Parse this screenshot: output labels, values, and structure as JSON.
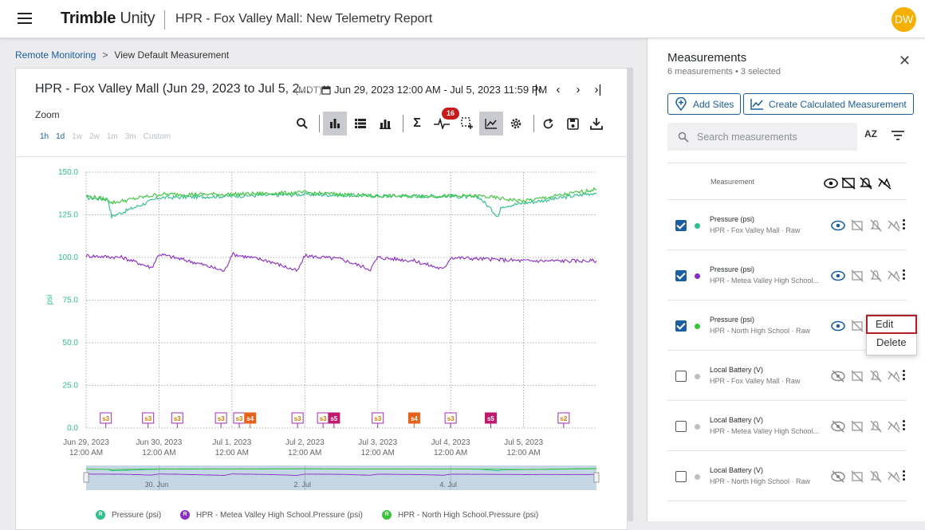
{
  "header": {
    "brand_bold": "Trimble",
    "brand_light": "Unity",
    "title": "HPR - Fox Valley Mall: New Telemetry Report",
    "avatar": "DW"
  },
  "breadcrumb": {
    "link": "Remote Monitoring",
    "current": "View Default Measurement"
  },
  "chart_panel": {
    "title": "HPR - Fox Valley Mall (Jun 29, 2023 to Jul 5, 2...",
    "timezone": "(MDT)",
    "date_range": "Jun 29, 2023 12:00 AM - Jul 5, 2023 11:59 PM",
    "zoom_label": "Zoom",
    "zoom_options": [
      "1h",
      "1d",
      "1w",
      "2w",
      "1m",
      "3m",
      "Custom"
    ],
    "active_zoom": [
      "1h",
      "1d"
    ],
    "alert_badge": "16",
    "toolbar_icons": [
      "search-icon",
      "bar-chart-icon",
      "list-icon",
      "stacked-bar-icon",
      "sigma-icon",
      "pulse-icon",
      "selection-icon",
      "line-chart-icon",
      "gear-icon",
      "refresh-icon",
      "save-icon",
      "download-icon"
    ]
  },
  "chart_data": {
    "type": "line",
    "ylabel": "psi",
    "ylim": [
      0,
      150
    ],
    "y_ticks": [
      "150.0",
      "125.0",
      "100.0",
      "75.0",
      "50.0",
      "25.0",
      "0.0"
    ],
    "x_ticks": [
      {
        "date": "Jun 29, 2023",
        "time": "12:00 AM"
      },
      {
        "date": "Jun 30, 2023",
        "time": "12:00 AM"
      },
      {
        "date": "Jul 1, 2023",
        "time": "12:00 AM"
      },
      {
        "date": "Jul 2, 2023",
        "time": "12:00 AM"
      },
      {
        "date": "Jul 3, 2023",
        "time": "12:00 AM"
      },
      {
        "date": "Jul 4, 2023",
        "time": "12:00 AM"
      },
      {
        "date": "Jul 5, 2023",
        "time": "12:00 AM"
      }
    ],
    "navigator_labels": [
      "30. Jun",
      "2. Jul",
      "4. Jul"
    ],
    "series": [
      {
        "name": "Pressure (psi)",
        "color": "#2cc08a",
        "x_days": [
          0,
          0.3,
          0.35,
          1.0,
          2.0,
          3.0,
          4.0,
          5.0,
          5.4,
          5.65,
          5.7,
          6.2,
          7.0
        ],
        "y": [
          135,
          134,
          124,
          135,
          136,
          137,
          136,
          136,
          135,
          124,
          130,
          133,
          138
        ]
      },
      {
        "name": "HPR - Metea Valley High School.Pressure (psi)",
        "color": "#8a2cc8",
        "x_days": [
          0,
          0.5,
          0.9,
          1.0,
          1.5,
          1.9,
          2.0,
          2.5,
          2.9,
          3.0,
          3.5,
          3.9,
          4.0,
          4.5,
          4.9,
          5.0,
          5.5,
          6.0,
          7.0
        ],
        "y": [
          101,
          100,
          94,
          102,
          97,
          92,
          102,
          98,
          92,
          101,
          99,
          93,
          100,
          98,
          93,
          100,
          99,
          98,
          98
        ]
      },
      {
        "name": "HPR - North High School.Pressure (psi)",
        "color": "#3ac43a",
        "x_days": [
          0,
          0.3,
          0.35,
          1.0,
          2.0,
          3.0,
          4.0,
          5.0,
          5.4,
          6.0,
          6.3,
          7.0
        ],
        "y": [
          136,
          134,
          132,
          137,
          137,
          138,
          136,
          136,
          136,
          133,
          135,
          140
        ]
      }
    ],
    "events": [
      {
        "label": "s3",
        "day": 0.27,
        "color": "#a22cb5"
      },
      {
        "label": "s3",
        "day": 0.85,
        "color": "#a22cb5"
      },
      {
        "label": "s3",
        "day": 1.25,
        "color": "#a22cb5"
      },
      {
        "label": "s3",
        "day": 1.85,
        "color": "#a22cb5"
      },
      {
        "label": "s3",
        "day": 2.1,
        "color": "#a22cb5"
      },
      {
        "label": "s4",
        "day": 2.25,
        "color": "#e8611a"
      },
      {
        "label": "s3",
        "day": 2.9,
        "color": "#a22cb5"
      },
      {
        "label": "s3",
        "day": 3.25,
        "color": "#a22cb5"
      },
      {
        "label": "s5",
        "day": 3.4,
        "color": "#c0186e"
      },
      {
        "label": "s3",
        "day": 4.0,
        "color": "#a22cb5"
      },
      {
        "label": "s4",
        "day": 4.5,
        "color": "#e8611a"
      },
      {
        "label": "s3",
        "day": 5.0,
        "color": "#a22cb5"
      },
      {
        "label": "s5",
        "day": 5.55,
        "color": "#c0186e"
      },
      {
        "label": "s2",
        "day": 6.55,
        "color": "#a22cb5"
      }
    ]
  },
  "legend": [
    {
      "icon_letter": "R",
      "label": "Pressure (psi)",
      "color": "#2cc08a"
    },
    {
      "icon_letter": "R",
      "label": "HPR - Metea Valley High School.Pressure (psi)",
      "color": "#8a2cc8"
    },
    {
      "icon_letter": "R",
      "label": "HPR - North High School.Pressure (psi)",
      "color": "#3ac43a"
    }
  ],
  "measurements_panel": {
    "title": "Measurements",
    "subtitle": "6 measurements • 3 selected",
    "add_sites": "Add Sites",
    "create_calc": "Create Calculated Measurement",
    "search_placeholder": "Search measurements",
    "sort_label": "AZ",
    "column_header": "Measurement",
    "rows": [
      {
        "name": "Pressure (psi)",
        "meta": "HPR - Fox Valley Mall · Raw",
        "checked": true,
        "dot": "#2cc08a"
      },
      {
        "name": "Pressure (psi)",
        "meta": "HPR - Metea Valley High School...",
        "checked": true,
        "dot": "#8a2cc8"
      },
      {
        "name": "Pressure (psi)",
        "meta": "HPR - North High School · Raw",
        "checked": true,
        "dot": "#3ac43a"
      },
      {
        "name": "Local Battery (V)",
        "meta": "HPR - Fox Valley Mall · Raw",
        "checked": false,
        "dot": "#bfbfbf"
      },
      {
        "name": "Local Battery (V)",
        "meta": "HPR - Metea Valley High School...",
        "checked": false,
        "dot": "#bfbfbf"
      },
      {
        "name": "Local Battery (V)",
        "meta": "HPR - North High School · Raw",
        "checked": false,
        "dot": "#bfbfbf"
      }
    ],
    "context_menu": [
      "Edit",
      "Delete"
    ]
  }
}
